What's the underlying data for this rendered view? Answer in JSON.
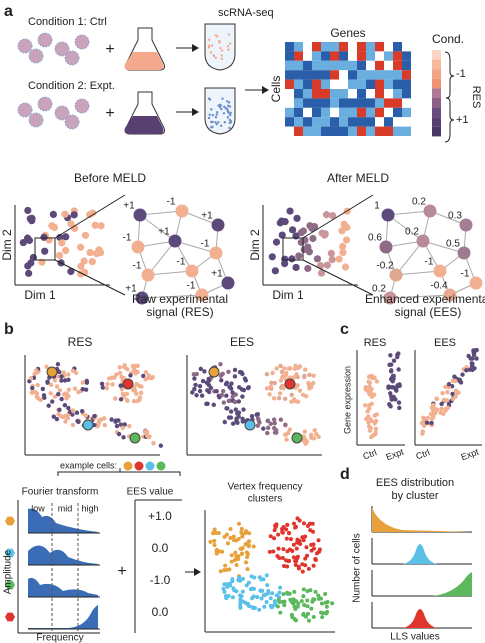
{
  "panel_labels": [
    "a",
    "b",
    "c",
    "d"
  ],
  "panel_a": {
    "condition_1": "Condition 1: Ctrl",
    "condition_2": "Condition 2: Expt.",
    "assay": "scRNA-seq",
    "plus": "+",
    "heatmap_columns": "Genes",
    "heatmap_rows": "Cells",
    "condition_header": "Cond.",
    "condition_levels": [
      "-1",
      "+1"
    ],
    "condition_axis": "RES",
    "before": {
      "title": "Before MELD",
      "x_axis": "Dim 1",
      "y_axis": "Dim 2",
      "node_labels": [
        "+1",
        "-1",
        "+1",
        "-1",
        "+1",
        "-1",
        "-1",
        "-1",
        "+1",
        "-1",
        "+1"
      ],
      "caption": [
        "Raw experimental",
        "signal (RES)"
      ]
    },
    "after": {
      "title": "After MELD",
      "x_axis": "Dim 1",
      "y_axis": "Dim 2",
      "node_labels": [
        "1",
        "0.2",
        "0.3",
        "0.6",
        "0.2",
        "0.5",
        "-0.2",
        "-1",
        "0.2",
        "-0.4",
        "-1"
      ],
      "caption": [
        "Enhanced experimental",
        "signal (EES)"
      ]
    }
  },
  "panel_b": {
    "res": "RES",
    "ees": "EES",
    "example_cells": "example cells:",
    "fourier": "Fourier transform",
    "ees_value": "EES value",
    "clusters": [
      "Vertex frequency",
      "clusters"
    ],
    "bands": [
      "low",
      "mid",
      "high"
    ],
    "ees_values": [
      "+1.0",
      "0.0",
      "-1.0",
      "0.0"
    ],
    "y_axis": "Amplitude",
    "x_axis": "Frequency",
    "plus": "+"
  },
  "panel_c": {
    "res": "RES",
    "ees": "EES",
    "y_axis": "Gene expression",
    "x_ticks": [
      "Ctrl",
      "Expt"
    ]
  },
  "panel_d": {
    "title": [
      "EES distribution",
      "by cluster"
    ],
    "y_axis": "Number of cells",
    "x_axis": "LLS values"
  }
}
